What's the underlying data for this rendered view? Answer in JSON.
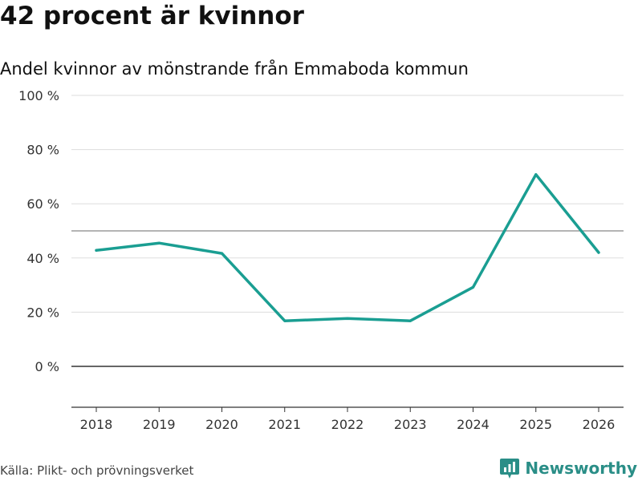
{
  "header": {
    "title": "42 procent är kvinnor",
    "subtitle": "Andel kvinnor av mönstrande från Emmaboda kommun"
  },
  "footer": {
    "source": "Källa: Plikt- och prövningsverket",
    "brand": "Newsworthy"
  },
  "colors": {
    "line": "#1a9e92",
    "grid": "#dddddd",
    "axis": "#333333",
    "reference": "#888888",
    "brand": "#2a8e87"
  },
  "chart_data": {
    "type": "line",
    "title": "42 procent är kvinnor",
    "subtitle": "Andel kvinnor av mönstrande från Emmaboda kommun",
    "x": [
      "2018",
      "2019",
      "2020",
      "2021",
      "2022",
      "2023",
      "2024",
      "2025",
      "2026"
    ],
    "series": [
      {
        "name": "Andel kvinnor",
        "values": [
          42.8,
          45.5,
          41.7,
          16.8,
          17.7,
          16.8,
          29.2,
          70.8,
          42.0
        ]
      }
    ],
    "reference_line": 50,
    "y_ticks": [
      0,
      20,
      40,
      60,
      80,
      100
    ],
    "y_tick_labels": [
      "0 %",
      "20 %",
      "40 %",
      "60 %",
      "80 %",
      "100 %"
    ],
    "ylim": [
      -15,
      100
    ],
    "xlabel": "",
    "ylabel": "",
    "grid": true
  }
}
